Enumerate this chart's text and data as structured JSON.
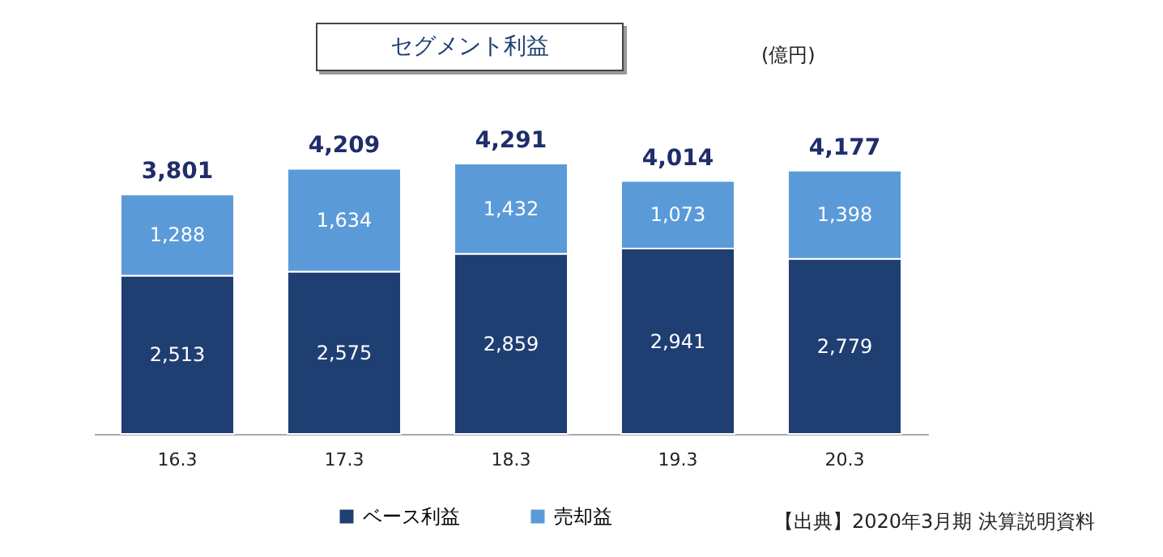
{
  "chart_data": {
    "type": "bar",
    "title": "セグメント利益",
    "categories": [
      "16.3",
      "17.3",
      "18.3",
      "19.3",
      "20.3"
    ],
    "stacked": true,
    "legend": "bottom",
    "series": [
      {
        "name": "ベース利益",
        "color": "#1f3f73",
        "values": [
          2513,
          2575,
          2859,
          2941,
          2779
        ],
        "value_labels": [
          "2,513",
          "2,575",
          "2,859",
          "2,941",
          "2,779"
        ]
      },
      {
        "name": "売却益",
        "color": "#5b9ad8",
        "values": [
          1288,
          1634,
          1432,
          1073,
          1398
        ],
        "value_labels": [
          "1,288",
          "1,634",
          "1,432",
          "1,073",
          "1,398"
        ]
      }
    ],
    "totals": [
      "3,801",
      "4,209",
      "4,291",
      "4,014",
      "4,177"
    ],
    "annotations": [
      "(億円)",
      "【出典】2020年3月期 決算説明資料"
    ]
  }
}
